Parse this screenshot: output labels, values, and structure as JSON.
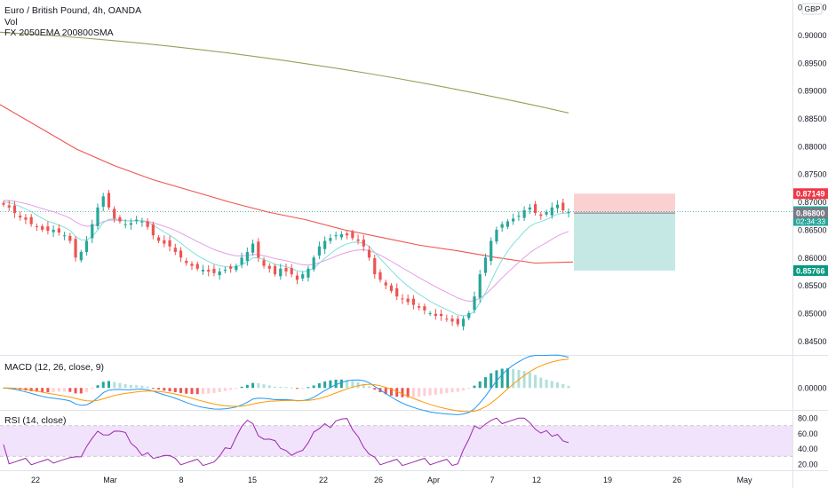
{
  "header": {
    "symbol_title": "Euro / British Pound, 4h, OANDA",
    "volume_label": "Vol",
    "indicators_label": "FX 2050EMA 200800SMA"
  },
  "currency_badge": "GBP",
  "macd": {
    "label": "MACD (12, 26, close, 9)",
    "zero_label": "0.00000"
  },
  "rsi": {
    "label": "RSI (14, close)",
    "ticks": [
      "80.00",
      "60.00",
      "40.00",
      "20.00"
    ]
  },
  "price_axis": {
    "ticks": [
      "0.90500",
      "0.90000",
      "0.89500",
      "0.89000",
      "0.88500",
      "0.88000",
      "0.87500",
      "0.87000",
      "0.86500",
      "0.86000",
      "0.85500",
      "0.85000",
      "0.84500"
    ]
  },
  "price_labels": {
    "stop": "0.87149",
    "last_price": "0.86826",
    "countdown": "02:34:33",
    "entry": "0.86800",
    "target": "0.85766"
  },
  "time_axis": {
    "labels": [
      "22",
      "Mar",
      "8",
      "15",
      "22",
      "26",
      "Apr",
      "7",
      "12",
      "19",
      "26",
      "May"
    ]
  },
  "colors": {
    "up": "#26a69a",
    "down": "#ef5350",
    "ema20": "#7ee0d9",
    "ema50": "#e89ce8",
    "sma200": "#ef5350",
    "sma800": "#9a9e5a",
    "stop_zone": "#f8c5c5",
    "target_zone": "#bfe6e1",
    "macd": "#2196f3",
    "signal": "#ff9800",
    "rsi": "#9c27b0",
    "rsi_band": "#f1e3fb"
  },
  "chart_data": {
    "type": "candlestick",
    "timeframe": "4h",
    "y_range": [
      0.8425,
      0.9055
    ],
    "x_labels": [
      "22",
      "Mar",
      "8",
      "15",
      "22",
      "26",
      "Apr",
      "7",
      "12",
      "19",
      "26",
      "May"
    ],
    "close_series": [
      0.8695,
      0.869,
      0.868,
      0.8672,
      0.8668,
      0.866,
      0.8655,
      0.865,
      0.8648,
      0.865,
      0.8645,
      0.864,
      0.863,
      0.86,
      0.861,
      0.863,
      0.866,
      0.869,
      0.871,
      0.869,
      0.867,
      0.8665,
      0.866,
      0.8662,
      0.8668,
      0.8665,
      0.8655,
      0.864,
      0.863,
      0.8625,
      0.862,
      0.861,
      0.86,
      0.859,
      0.8585,
      0.858,
      0.8578,
      0.8575,
      0.8572,
      0.8575,
      0.8578,
      0.858,
      0.8585,
      0.86,
      0.861,
      0.8625,
      0.86,
      0.8585,
      0.858,
      0.857,
      0.858,
      0.8575,
      0.857,
      0.856,
      0.857,
      0.858,
      0.86,
      0.862,
      0.863,
      0.8635,
      0.864,
      0.8642,
      0.864,
      0.8635,
      0.863,
      0.862,
      0.86,
      0.857,
      0.856,
      0.855,
      0.854,
      0.853,
      0.8525,
      0.852,
      0.8515,
      0.851,
      0.8505,
      0.85,
      0.8495,
      0.8495,
      0.849,
      0.8485,
      0.848,
      0.849,
      0.85,
      0.853,
      0.857,
      0.86,
      0.863,
      0.865,
      0.866,
      0.8665,
      0.867,
      0.8675,
      0.8685,
      0.869,
      0.868,
      0.8675,
      0.8682,
      0.869,
      0.8695,
      0.8685,
      0.8682
    ],
    "overlays": {
      "sma800": {
        "from": 0.9005,
        "to": 0.886
      },
      "sma200": {
        "values": [
          0.8875,
          0.8835,
          0.8795,
          0.8765,
          0.874,
          0.872,
          0.87,
          0.8682,
          0.8668,
          0.865,
          0.8636,
          0.8622,
          0.8612,
          0.86,
          0.859,
          0.8592
        ]
      }
    },
    "position": {
      "stop": 0.87149,
      "entry": 0.868,
      "target": 0.85766,
      "last_price": 0.86826
    },
    "macd_range": [
      -0.0025,
      0.004
    ],
    "rsi_range": [
      14,
      86
    ]
  }
}
